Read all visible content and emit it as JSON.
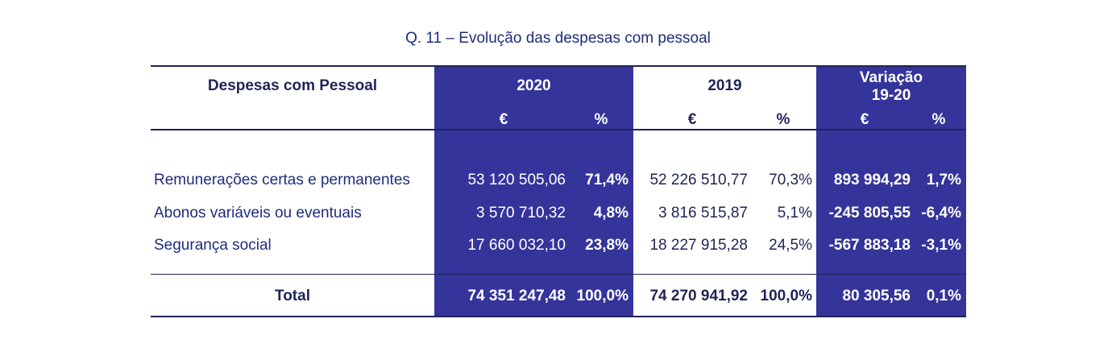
{
  "title": "Q. 11 – Evolução das despesas com pessoal",
  "header": {
    "row_label": "Despesas com Pessoal",
    "year_2020": "2020",
    "year_2019": "2019",
    "variation_line1": "Variação",
    "variation_line2": "19-20",
    "euro": "€",
    "percent": "%"
  },
  "rows": [
    {
      "label": "Remunerações certas e permanentes",
      "v2020": "53 120 505,06",
      "p2020": "71,4%",
      "v2019": "52 226 510,77",
      "p2019": "70,3%",
      "var_eur": "893 994,29",
      "var_pct": "1,7%"
    },
    {
      "label": "Abonos variáveis ou eventuais",
      "v2020": "3 570 710,32",
      "p2020": "4,8%",
      "v2019": "3 816 515,87",
      "p2019": "5,1%",
      "var_eur": "-245 805,55",
      "var_pct": "-6,4%"
    },
    {
      "label": "Segurança social",
      "v2020": "17 660 032,10",
      "p2020": "23,8%",
      "v2019": "18 227 915,28",
      "p2019": "24,5%",
      "var_eur": "-567 883,18",
      "var_pct": "-3,1%"
    }
  ],
  "total": {
    "label": "Total",
    "v2020": "74 351 247,48",
    "p2020": "100,0%",
    "v2019": "74 270 941,92",
    "p2019": "100,0%",
    "var_eur": "80 305,56",
    "var_pct": "0,1%"
  },
  "colors": {
    "header_fill": "#35349A",
    "text_navy": "#1F2456",
    "title_navy": "#1F2D7A"
  }
}
